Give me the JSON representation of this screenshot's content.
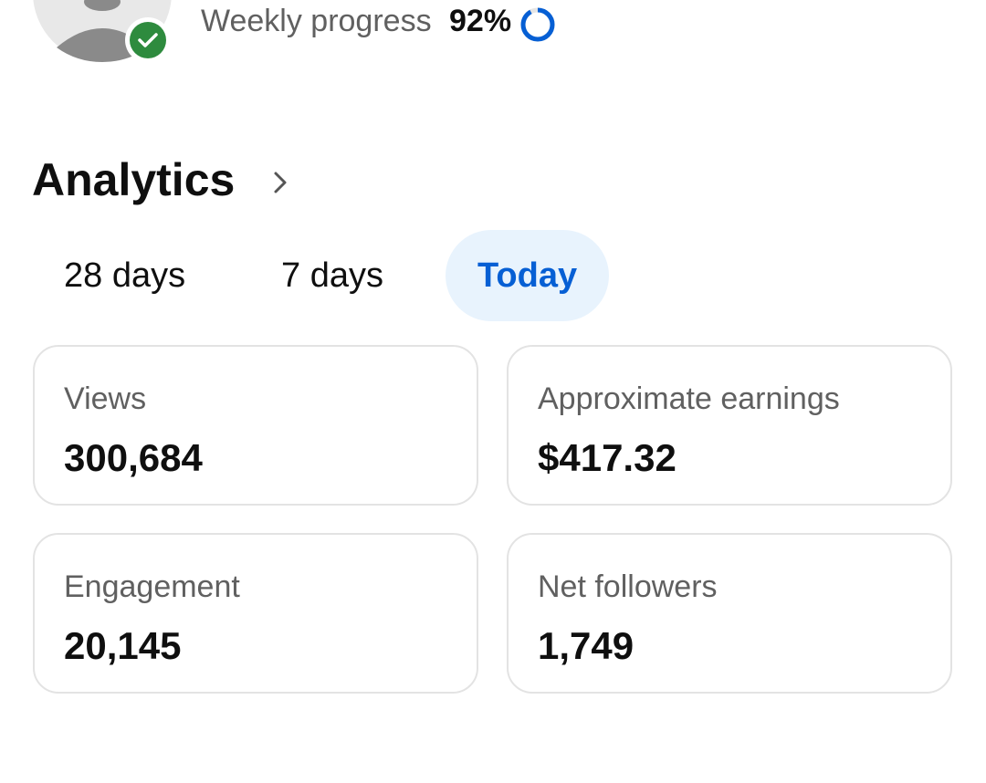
{
  "profile": {
    "progress": {
      "label": "Weekly progress",
      "value": 92,
      "value_label": "92%"
    }
  },
  "analytics": {
    "title": "Analytics",
    "tabs": [
      "28 days",
      "7 days",
      "Today"
    ],
    "selected_tab": 2,
    "cards": [
      {
        "label": "Views",
        "value": "300,684"
      },
      {
        "label": "Approximate earnings",
        "value": "$417.32"
      },
      {
        "label": "Engagement",
        "value": "20,145"
      },
      {
        "label": "Net followers",
        "value": "1,749"
      }
    ]
  }
}
